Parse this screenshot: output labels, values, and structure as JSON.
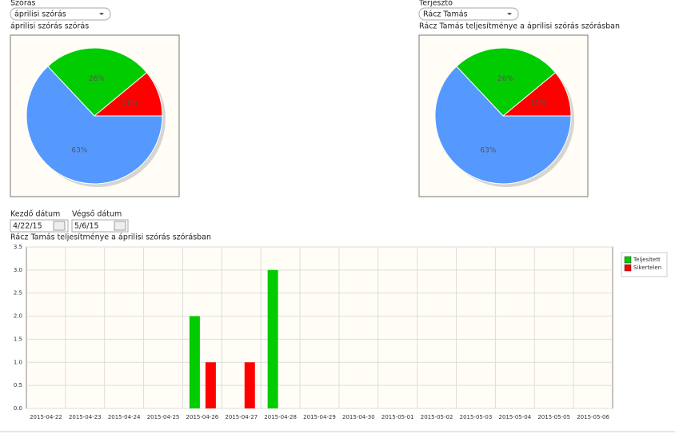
{
  "controls": {
    "distribution_label": "Szórás",
    "distribution_value": "áprilisi szórás",
    "distributor_label": "Terjesztő",
    "distributor_value": "Rácz Tamás",
    "start_label": "Kezdő dátum",
    "start_value": "4/22/15",
    "end_label": "Végső dátum",
    "end_value": "5/6/15"
  },
  "chart_data": [
    {
      "type": "pie",
      "title": "áprilisi szórás szórás",
      "values": [
        11,
        26,
        63
      ],
      "value_labels": [
        "11%",
        "26%",
        "63%"
      ],
      "colors": [
        "#ff0000",
        "#00cc00",
        "#5599ff"
      ]
    },
    {
      "type": "pie",
      "title": "Rácz Tamás teljesítménye a áprilisi szórás szórásban",
      "values": [
        11,
        26,
        63
      ],
      "value_labels": [
        "11%",
        "26%",
        "63%"
      ],
      "colors": [
        "#ff0000",
        "#00cc00",
        "#5599ff"
      ]
    },
    {
      "type": "bar",
      "title": "Rácz Tamás teljesítménye a áprilisi szórás szórásban",
      "categories": [
        "2015-04-22",
        "2015-04-23",
        "2015-04-24",
        "2015-04-25",
        "2015-04-26",
        "2015-04-27",
        "2015-04-28",
        "2015-04-29",
        "2015-04-30",
        "2015-05-01",
        "2015-05-02",
        "2015-05-03",
        "2015-05-04",
        "2015-05-05",
        "2015-05-06"
      ],
      "series": [
        {
          "name": "Teljesített",
          "color": "#00cc00",
          "values": [
            0,
            0,
            0,
            0,
            2,
            0,
            3,
            0,
            0,
            0,
            0,
            0,
            0,
            0,
            0
          ]
        },
        {
          "name": "Sikertelen",
          "color": "#ff0000",
          "values": [
            0,
            0,
            0,
            0,
            1,
            1,
            0,
            0,
            0,
            0,
            0,
            0,
            0,
            0,
            0
          ]
        }
      ],
      "ylim": [
        0,
        3.5
      ],
      "yticks": [
        {
          "value": 0,
          "label": "0.0"
        },
        0.5,
        {
          "value": 1,
          "label": "1.0"
        },
        1.5,
        {
          "value": 2,
          "label": "2.0"
        },
        2.5,
        {
          "value": 3,
          "label": "3.0"
        },
        3.5
      ],
      "grid": true,
      "legend": "right"
    }
  ]
}
